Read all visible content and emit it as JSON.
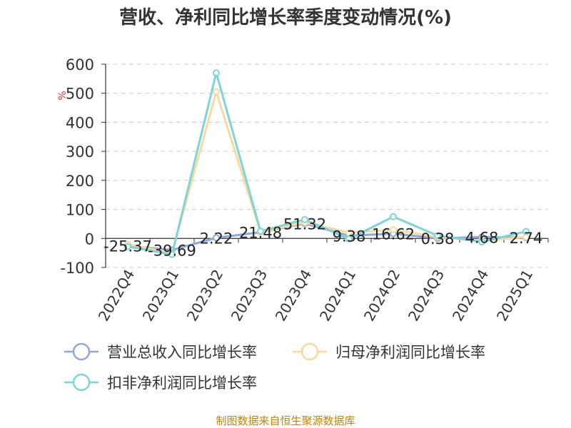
{
  "title": "营收、净利同比增长率季度变动情况(%)",
  "source": "制图数据来自恒生聚源数据库",
  "chart_data": {
    "type": "line",
    "ylabel": "%",
    "ylim": [
      -100,
      600
    ],
    "yticks": [
      600,
      500,
      400,
      300,
      200,
      100,
      0,
      -100
    ],
    "grid": true,
    "legend_position": "bottom",
    "categories": [
      "2022Q4",
      "2023Q1",
      "2023Q2",
      "2023Q3",
      "2023Q4",
      "2024Q1",
      "2024Q2",
      "2024Q3",
      "2024Q4",
      "2025Q1"
    ],
    "series": [
      {
        "name": "营业总收入同比增长率",
        "color": "#8fa8d8",
        "values": [
          -25.37,
          -39.69,
          2.22,
          21.48,
          51.32,
          9.38,
          16.62,
          0.38,
          4.68,
          2.74
        ],
        "labels": [
          "-25.37",
          "-39.69",
          "2.22",
          "21.48",
          "51.32",
          "9.38",
          "16.62",
          "0.38",
          "4.68",
          "2.74"
        ]
      },
      {
        "name": "归母净利润同比增长率",
        "color": "#f8d9a0",
        "values": [
          -20,
          -50,
          505,
          22,
          55,
          20,
          30,
          5,
          -8,
          5
        ]
      },
      {
        "name": "扣非净利润同比增长率",
        "color": "#7dd3d8",
        "values": [
          -28,
          -55,
          570,
          25,
          65,
          -2,
          75,
          10,
          -12,
          24
        ]
      }
    ]
  }
}
